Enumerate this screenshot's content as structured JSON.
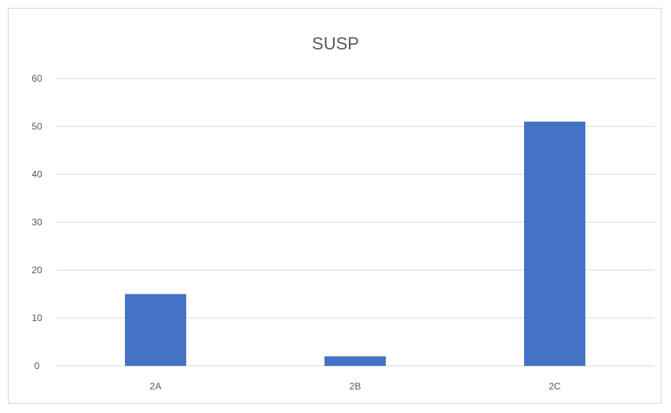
{
  "chart_data": {
    "type": "bar",
    "title": "SUSP",
    "categories": [
      "2A",
      "2B",
      "2C"
    ],
    "values": [
      15,
      2,
      51
    ],
    "ylim": [
      0,
      60
    ],
    "yticks": [
      0,
      10,
      20,
      30,
      40,
      50,
      60
    ],
    "grid": true,
    "legend": "none",
    "bar_color": "#4472c4"
  }
}
